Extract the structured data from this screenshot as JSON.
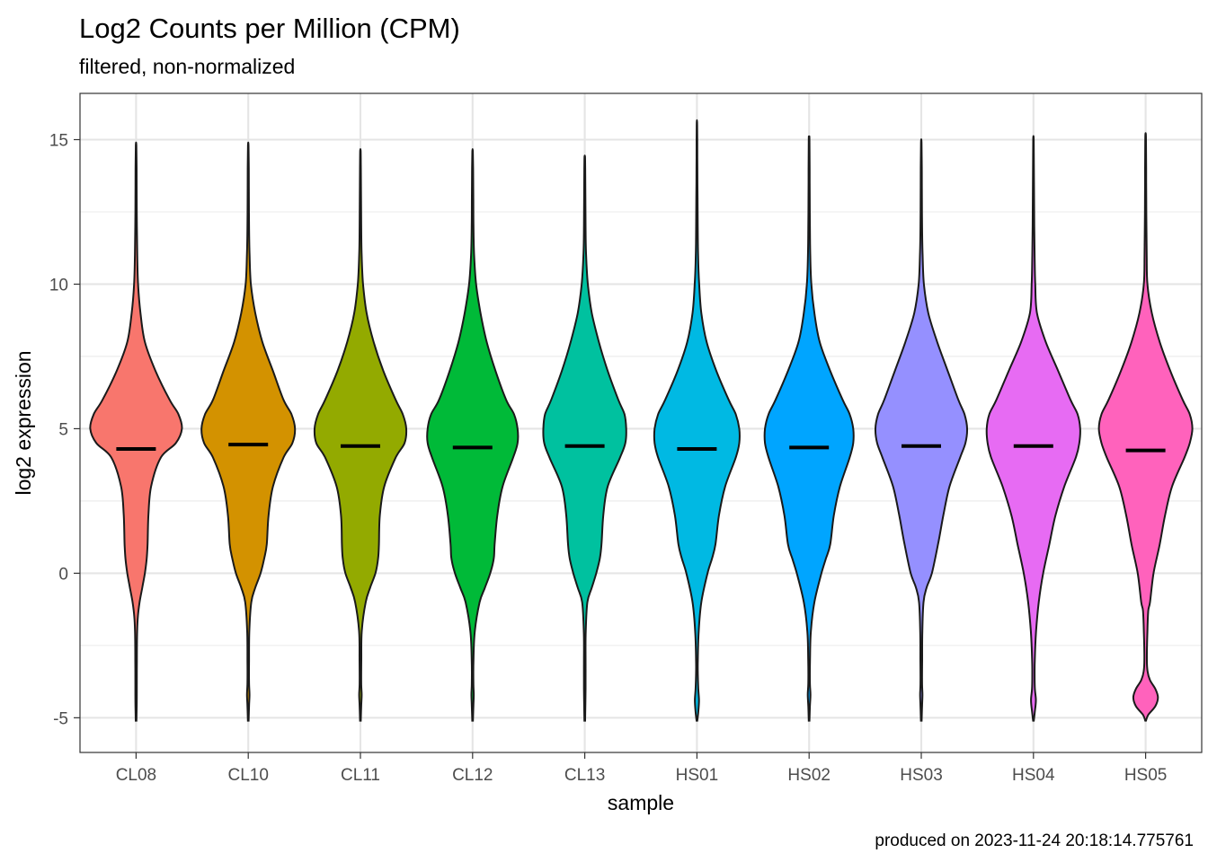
{
  "chart_data": {
    "type": "violin",
    "title": "Log2 Counts per Million (CPM)",
    "subtitle": "filtered, non-normalized",
    "xlabel": "sample",
    "ylabel": "log2 expression",
    "caption": "produced on 2023-11-24 20:18:14.775761",
    "ylim": [
      -6.2,
      16.6
    ],
    "y_ticks": [
      -5,
      0,
      5,
      10,
      15
    ],
    "y_tick_labels": [
      "-5",
      "0",
      "5",
      "10",
      "15"
    ],
    "grid": true,
    "legend": "none",
    "categories": [
      "CL08",
      "CL10",
      "CL11",
      "CL12",
      "CL13",
      "HS01",
      "HS02",
      "HS03",
      "HS04",
      "HS05"
    ],
    "colors": [
      "#F8766D",
      "#D39200",
      "#93AA00",
      "#00BA38",
      "#00C19F",
      "#00B9E3",
      "#00A5FF",
      "#9590FF",
      "#E76BF3",
      "#FF62BC"
    ],
    "median_marker": "mean",
    "series": [
      {
        "name": "CL08",
        "mean": 4.3,
        "min": -5.1,
        "max": 14.8,
        "profile": [
          [
            -5.1,
            0.4
          ],
          [
            -4.6,
            0.7
          ],
          [
            -4,
            0.8
          ],
          [
            -3,
            0.9
          ],
          [
            -2,
            1.2
          ],
          [
            -1.5,
            2.0
          ],
          [
            -1,
            4
          ],
          [
            -0.5,
            7
          ],
          [
            0,
            10
          ],
          [
            0.5,
            12
          ],
          [
            1,
            13
          ],
          [
            2,
            14
          ],
          [
            3,
            17
          ],
          [
            4,
            28
          ],
          [
            4.5,
            45
          ],
          [
            5,
            52
          ],
          [
            5.5,
            48
          ],
          [
            6,
            38
          ],
          [
            7,
            22
          ],
          [
            8,
            10
          ],
          [
            9,
            5
          ],
          [
            10,
            2.2
          ],
          [
            11,
            1.3
          ],
          [
            12,
            0.9
          ],
          [
            13,
            0.7
          ],
          [
            14,
            0.6
          ],
          [
            14.8,
            0.3
          ]
        ]
      },
      {
        "name": "CL10",
        "mean": 4.45,
        "min": -5.1,
        "max": 14.8,
        "profile": [
          [
            -5.1,
            0.4
          ],
          [
            -4.6,
            0.9
          ],
          [
            -4.2,
            1.4
          ],
          [
            -3.8,
            0.9
          ],
          [
            -3,
            0.9
          ],
          [
            -2,
            1.2
          ],
          [
            -1,
            3.5
          ],
          [
            -0.5,
            8
          ],
          [
            0,
            14
          ],
          [
            0.5,
            18
          ],
          [
            1,
            21
          ],
          [
            2,
            23
          ],
          [
            3,
            28
          ],
          [
            4,
            40
          ],
          [
            4.5,
            50
          ],
          [
            5,
            53
          ],
          [
            5.5,
            49
          ],
          [
            6,
            40
          ],
          [
            7,
            28
          ],
          [
            8,
            16
          ],
          [
            9,
            8
          ],
          [
            10,
            3
          ],
          [
            11,
            1.5
          ],
          [
            12,
            0.9
          ],
          [
            13,
            0.7
          ],
          [
            14,
            0.6
          ],
          [
            14.8,
            0.3
          ]
        ]
      },
      {
        "name": "CL11",
        "mean": 4.4,
        "min": -5.1,
        "max": 14.6,
        "profile": [
          [
            -5.1,
            0.4
          ],
          [
            -4.6,
            0.9
          ],
          [
            -4.2,
            1.4
          ],
          [
            -3.8,
            0.9
          ],
          [
            -3,
            1.0
          ],
          [
            -2,
            1.5
          ],
          [
            -1,
            6
          ],
          [
            -0.5,
            11
          ],
          [
            0,
            17
          ],
          [
            0.5,
            20
          ],
          [
            1,
            21
          ],
          [
            2,
            22
          ],
          [
            3,
            27
          ],
          [
            4,
            40
          ],
          [
            4.5,
            50
          ],
          [
            5,
            52
          ],
          [
            5.5,
            48
          ],
          [
            6,
            40
          ],
          [
            7,
            26
          ],
          [
            8,
            15
          ],
          [
            9,
            7
          ],
          [
            10,
            3
          ],
          [
            11,
            1.4
          ],
          [
            12,
            0.9
          ],
          [
            13,
            0.7
          ],
          [
            14,
            0.5
          ],
          [
            14.6,
            0.3
          ]
        ]
      },
      {
        "name": "CL12",
        "mean": 4.35,
        "min": -5.1,
        "max": 14.6,
        "profile": [
          [
            -5.1,
            0.4
          ],
          [
            -4.6,
            0.9
          ],
          [
            -4.2,
            1.3
          ],
          [
            -3.8,
            0.9
          ],
          [
            -3,
            1.0
          ],
          [
            -2,
            2.5
          ],
          [
            -1,
            8
          ],
          [
            -0.5,
            14
          ],
          [
            0,
            20
          ],
          [
            0.5,
            24
          ],
          [
            1,
            25
          ],
          [
            2,
            28
          ],
          [
            3,
            34
          ],
          [
            4,
            46
          ],
          [
            4.5,
            51
          ],
          [
            5,
            51
          ],
          [
            5.5,
            47
          ],
          [
            6,
            38
          ],
          [
            7,
            26
          ],
          [
            8,
            16
          ],
          [
            9,
            9
          ],
          [
            10,
            4
          ],
          [
            11,
            1.7
          ],
          [
            12,
            1.0
          ],
          [
            13,
            0.8
          ],
          [
            14,
            0.6
          ],
          [
            14.6,
            0.3
          ]
        ]
      },
      {
        "name": "CL13",
        "mean": 4.4,
        "min": -5.1,
        "max": 14.4,
        "profile": [
          [
            -5.1,
            0.4
          ],
          [
            -4,
            0.9
          ],
          [
            -3,
            0.9
          ],
          [
            -2,
            1.1
          ],
          [
            -1,
            3
          ],
          [
            -0.5,
            8
          ],
          [
            0,
            13
          ],
          [
            0.5,
            17
          ],
          [
            1,
            19
          ],
          [
            2,
            21
          ],
          [
            3,
            26
          ],
          [
            4,
            40
          ],
          [
            4.5,
            46
          ],
          [
            5,
            47
          ],
          [
            5.5,
            45
          ],
          [
            6,
            38
          ],
          [
            7,
            26
          ],
          [
            8,
            16
          ],
          [
            9,
            8
          ],
          [
            10,
            3.5
          ],
          [
            11,
            1.5
          ],
          [
            12,
            0.9
          ],
          [
            13,
            0.7
          ],
          [
            14,
            0.5
          ],
          [
            14.4,
            0.3
          ]
        ]
      },
      {
        "name": "HS01",
        "mean": 4.3,
        "min": -5.1,
        "max": 15.6,
        "profile": [
          [
            -5.1,
            0.4
          ],
          [
            -4.8,
            1.5
          ],
          [
            -4.4,
            2.3
          ],
          [
            -4,
            1.5
          ],
          [
            -3.5,
            1.0
          ],
          [
            -3,
            1.0
          ],
          [
            -2,
            2
          ],
          [
            -1,
            5
          ],
          [
            0,
            12
          ],
          [
            0.5,
            17
          ],
          [
            1,
            21
          ],
          [
            2,
            25
          ],
          [
            3,
            32
          ],
          [
            4,
            44
          ],
          [
            4.5,
            48
          ],
          [
            5,
            48
          ],
          [
            5.5,
            44
          ],
          [
            6,
            36
          ],
          [
            7,
            22
          ],
          [
            8,
            11
          ],
          [
            9,
            5
          ],
          [
            10,
            2.5
          ],
          [
            11,
            1.3
          ],
          [
            12,
            0.9
          ],
          [
            13,
            0.7
          ],
          [
            14,
            0.5
          ],
          [
            15,
            0.4
          ],
          [
            15.6,
            0.2
          ]
        ]
      },
      {
        "name": "HS02",
        "mean": 4.35,
        "min": -5.1,
        "max": 15.1,
        "profile": [
          [
            -5.1,
            0.4
          ],
          [
            -4.6,
            0.9
          ],
          [
            -4.2,
            1.5
          ],
          [
            -3.8,
            0.9
          ],
          [
            -3,
            1.0
          ],
          [
            -2,
            2
          ],
          [
            -1,
            6
          ],
          [
            0,
            14
          ],
          [
            0.5,
            19
          ],
          [
            1,
            24
          ],
          [
            2,
            28
          ],
          [
            3,
            35
          ],
          [
            4,
            46
          ],
          [
            4.5,
            50
          ],
          [
            5,
            50
          ],
          [
            5.5,
            46
          ],
          [
            6,
            38
          ],
          [
            7,
            24
          ],
          [
            8,
            12
          ],
          [
            9,
            6
          ],
          [
            10,
            2.5
          ],
          [
            11,
            1.3
          ],
          [
            12,
            0.9
          ],
          [
            13,
            0.7
          ],
          [
            14,
            0.6
          ],
          [
            15,
            0.4
          ],
          [
            15.1,
            0.2
          ]
        ]
      },
      {
        "name": "HS03",
        "mean": 4.4,
        "min": -5.1,
        "max": 14.9,
        "profile": [
          [
            -5.1,
            0.4
          ],
          [
            -4.6,
            0.9
          ],
          [
            -4.2,
            1.3
          ],
          [
            -3.8,
            0.9
          ],
          [
            -3,
            1.0
          ],
          [
            -2,
            1.2
          ],
          [
            -1,
            2.5
          ],
          [
            -0.5,
            6
          ],
          [
            0,
            12
          ],
          [
            1,
            19
          ],
          [
            2,
            25
          ],
          [
            3,
            32
          ],
          [
            4,
            44
          ],
          [
            4.5,
            50
          ],
          [
            5,
            52
          ],
          [
            5.5,
            49
          ],
          [
            6,
            42
          ],
          [
            7,
            30
          ],
          [
            8,
            18
          ],
          [
            9,
            8
          ],
          [
            10,
            3
          ],
          [
            11,
            1.5
          ],
          [
            12,
            0.9
          ],
          [
            13,
            0.7
          ],
          [
            14,
            0.6
          ],
          [
            14.9,
            0.3
          ]
        ]
      },
      {
        "name": "HS04",
        "mean": 4.4,
        "min": -5.1,
        "max": 15.0,
        "profile": [
          [
            -5.1,
            0.4
          ],
          [
            -4.8,
            1.5
          ],
          [
            -4.4,
            2.8
          ],
          [
            -4,
            1.6
          ],
          [
            -3.5,
            1.3
          ],
          [
            -3,
            1.5
          ],
          [
            -2,
            3
          ],
          [
            -1,
            6
          ],
          [
            0,
            11
          ],
          [
            1,
            18
          ],
          [
            2,
            25
          ],
          [
            3,
            35
          ],
          [
            4,
            48
          ],
          [
            4.5,
            52
          ],
          [
            5,
            53
          ],
          [
            5.5,
            50
          ],
          [
            6,
            42
          ],
          [
            7,
            28
          ],
          [
            8,
            14
          ],
          [
            9,
            4
          ],
          [
            10,
            2
          ],
          [
            11,
            1.3
          ],
          [
            12,
            0.9
          ],
          [
            13,
            0.7
          ],
          [
            14,
            0.5
          ],
          [
            15,
            0.3
          ]
        ]
      },
      {
        "name": "HS05",
        "mean": 4.25,
        "min": -5.1,
        "max": 15.2,
        "profile": [
          [
            -5.1,
            0.4
          ],
          [
            -4.9,
            3
          ],
          [
            -4.6,
            11
          ],
          [
            -4.3,
            14
          ],
          [
            -4,
            11
          ],
          [
            -3.7,
            5
          ],
          [
            -3.4,
            2.2
          ],
          [
            -3,
            1.4
          ],
          [
            -2,
            2
          ],
          [
            -1.3,
            3
          ],
          [
            -1,
            5
          ],
          [
            0,
            9
          ],
          [
            1,
            16
          ],
          [
            2,
            22
          ],
          [
            3,
            30
          ],
          [
            4,
            44
          ],
          [
            4.5,
            50
          ],
          [
            5,
            53
          ],
          [
            5.5,
            50
          ],
          [
            6,
            42
          ],
          [
            7,
            28
          ],
          [
            8,
            16
          ],
          [
            9,
            7
          ],
          [
            10,
            2
          ],
          [
            11,
            1.2
          ],
          [
            12,
            0.9
          ],
          [
            13,
            0.7
          ],
          [
            14,
            0.6
          ],
          [
            15,
            0.4
          ],
          [
            15.2,
            0.2
          ]
        ]
      }
    ]
  }
}
